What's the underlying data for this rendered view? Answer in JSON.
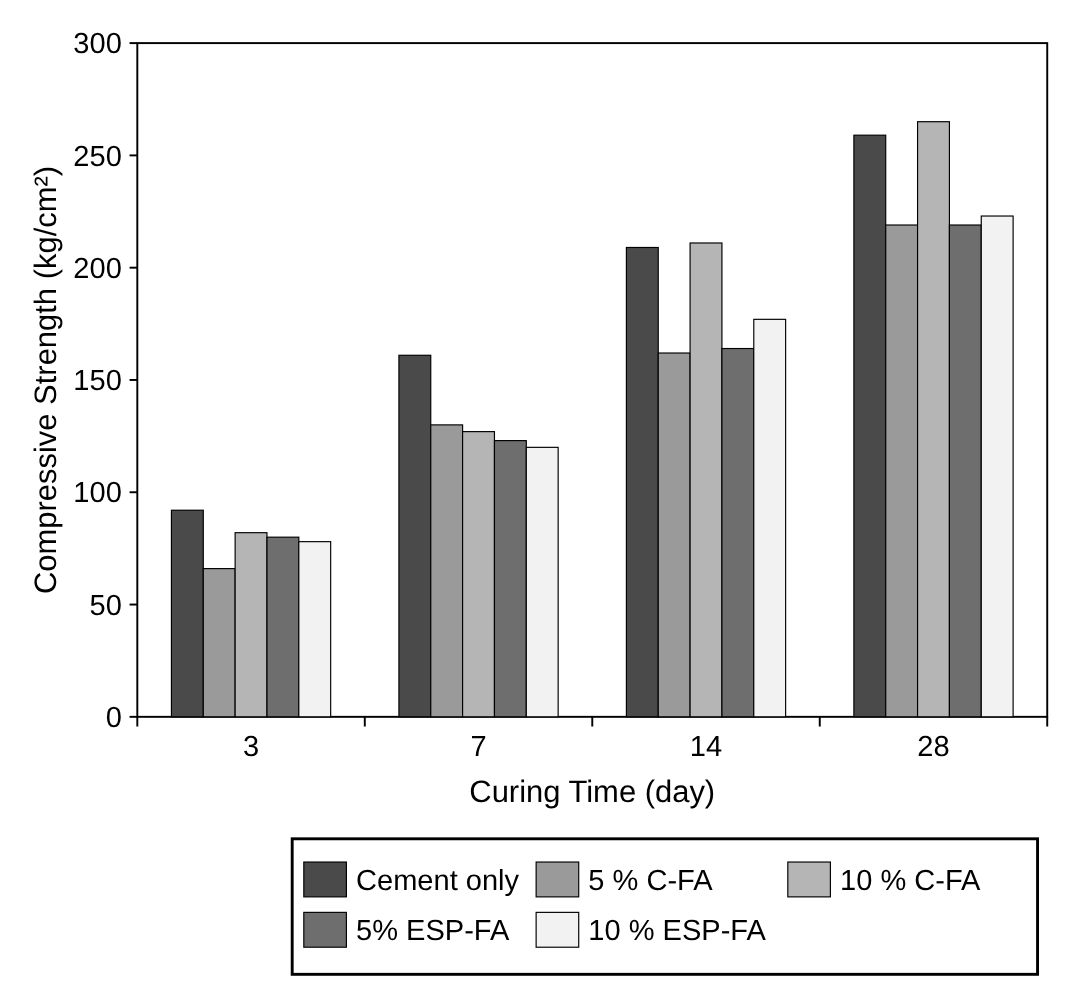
{
  "chart_data": {
    "type": "bar",
    "xlabel": "Curing Time (day)",
    "ylabel": "Compressive Strength (kg/cm²)",
    "categories": [
      "3",
      "7",
      "14",
      "28"
    ],
    "series": [
      {
        "name": "Cement only",
        "color": "#4a4a4a",
        "values": [
          92,
          161,
          209,
          259
        ]
      },
      {
        "name": "5 % C-FA",
        "color": "#9a9a9a",
        "values": [
          66,
          130,
          162,
          219
        ]
      },
      {
        "name": "10 % C-FA",
        "color": "#b5b5b5",
        "values": [
          82,
          127,
          211,
          265
        ]
      },
      {
        "name": "5% ESP-FA",
        "color": "#6e6e6e",
        "values": [
          80,
          123,
          164,
          219
        ]
      },
      {
        "name": "10 % ESP-FA",
        "color": "#f2f2f2",
        "values": [
          78,
          120,
          177,
          223
        ]
      }
    ],
    "ylim": [
      0,
      300
    ],
    "yticks": [
      0,
      50,
      100,
      150,
      200,
      250,
      300
    ],
    "legend": "bottom",
    "grid": false
  }
}
